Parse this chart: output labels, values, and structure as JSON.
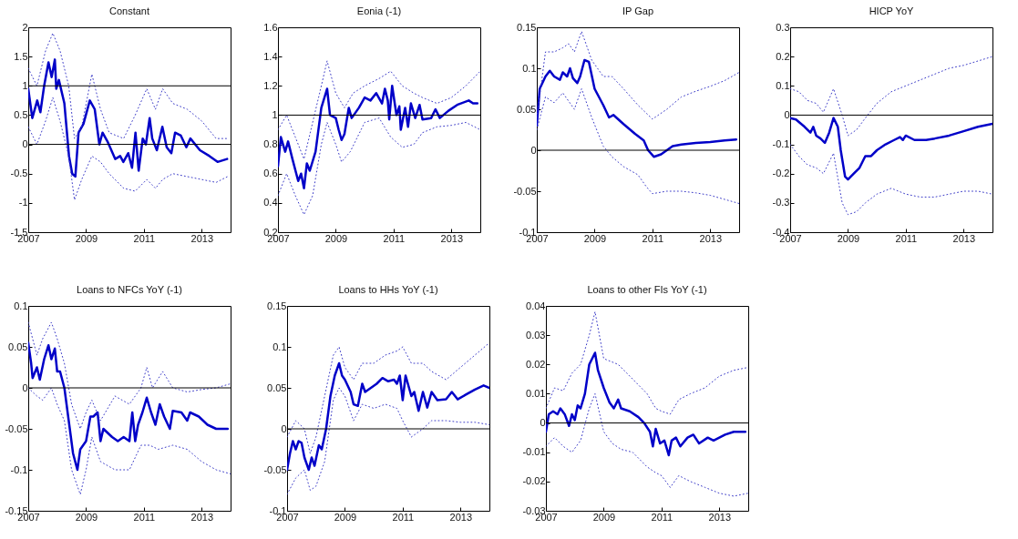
{
  "chart_data": [
    {
      "type": "line",
      "title": "Constant",
      "xlim": [
        2007,
        2014
      ],
      "xticks": [
        2007,
        2009,
        2011,
        2013
      ],
      "ylim": [
        -1.5,
        2
      ],
      "yticks": [
        -1.5,
        -1,
        -0.5,
        0,
        0.5,
        1,
        1.5,
        2
      ],
      "ref_lines": [
        {
          "axis": "y",
          "value": 1,
          "color": "#000000"
        },
        {
          "axis": "y",
          "value": 0,
          "color": "#000000"
        }
      ],
      "series": [
        {
          "color": "#0000c8",
          "line_style": "solid",
          "x": [
            2007,
            2007.14,
            2007.31,
            2007.42,
            2007.55,
            2007.7,
            2007.81,
            2007.92,
            2007.97,
            2008.06,
            2008.25,
            2008.41,
            2008.52,
            2008.63,
            2008.74,
            2008.91,
            2009.13,
            2009.3,
            2009.46,
            2009.57,
            2009.74,
            2010.01,
            2010.18,
            2010.29,
            2010.46,
            2010.59,
            2010.71,
            2010.82,
            2010.96,
            2011.07,
            2011.2,
            2011.29,
            2011.45,
            2011.64,
            2011.79,
            2011.95,
            2012.08,
            2012.28,
            2012.47,
            2012.61,
            2012.94,
            2013.27,
            2013.55,
            2013.88
          ],
          "values": [
            0.95,
            0.45,
            0.75,
            0.55,
            1.0,
            1.4,
            1.15,
            1.45,
            0.95,
            1.1,
            0.7,
            -0.2,
            -0.5,
            -0.55,
            0.2,
            0.35,
            0.75,
            0.6,
            0.0,
            0.2,
            0.05,
            -0.25,
            -0.2,
            -0.3,
            -0.15,
            -0.4,
            0.2,
            -0.45,
            0.1,
            0.0,
            0.45,
            0.1,
            -0.1,
            0.3,
            -0.05,
            -0.15,
            0.2,
            0.15,
            -0.05,
            0.1,
            -0.1,
            -0.2,
            -0.3,
            -0.25
          ]
        },
        {
          "color": "#3c3cc8",
          "line_style": "dotted",
          "x": [
            2007,
            2007.3,
            2007.6,
            2007.85,
            2008.1,
            2008.4,
            2008.6,
            2008.85,
            2009.2,
            2009.5,
            2009.8,
            2010.3,
            2010.7,
            2011.1,
            2011.4,
            2011.65,
            2012.0,
            2012.5,
            2013.0,
            2013.5,
            2013.9
          ],
          "values": [
            1.3,
            1.0,
            1.6,
            1.9,
            1.6,
            1.0,
            0.1,
            0.3,
            1.2,
            0.6,
            0.2,
            0.1,
            0.5,
            0.95,
            0.6,
            0.95,
            0.7,
            0.6,
            0.4,
            0.1,
            0.1
          ]
        },
        {
          "color": "#3c3cc8",
          "line_style": "dotted",
          "x": [
            2007,
            2007.3,
            2007.6,
            2007.85,
            2008.1,
            2008.4,
            2008.6,
            2008.85,
            2009.2,
            2009.5,
            2009.8,
            2010.3,
            2010.7,
            2011.1,
            2011.4,
            2011.65,
            2012.0,
            2012.5,
            2013.0,
            2013.5,
            2013.9
          ],
          "values": [
            0.3,
            0.0,
            0.4,
            0.8,
            0.4,
            -0.2,
            -0.95,
            -0.6,
            -0.2,
            -0.3,
            -0.5,
            -0.75,
            -0.8,
            -0.6,
            -0.75,
            -0.6,
            -0.5,
            -0.55,
            -0.6,
            -0.65,
            -0.55
          ]
        }
      ]
    },
    {
      "type": "line",
      "title": "Eonia (-1)",
      "xlim": [
        2007,
        2014
      ],
      "xticks": [
        2007,
        2009,
        2011,
        2013
      ],
      "ylim": [
        0.2,
        1.6
      ],
      "yticks": [
        0.2,
        0.4,
        0.6,
        0.8,
        1,
        1.2,
        1.4,
        1.6
      ],
      "ref_lines": [
        {
          "axis": "y",
          "value": 1,
          "color": "#000000"
        }
      ],
      "series": [
        {
          "color": "#0000c8",
          "line_style": "solid",
          "x": [
            2007,
            2007.1,
            2007.25,
            2007.35,
            2007.5,
            2007.7,
            2007.8,
            2007.9,
            2008.0,
            2008.1,
            2008.3,
            2008.5,
            2008.7,
            2008.8,
            2009.0,
            2009.1,
            2009.2,
            2009.3,
            2009.45,
            2009.55,
            2009.8,
            2010.0,
            2010.2,
            2010.4,
            2010.6,
            2010.7,
            2010.8,
            2010.85,
            2010.95,
            2011.1,
            2011.2,
            2011.25,
            2011.4,
            2011.5,
            2011.6,
            2011.75,
            2011.9,
            2012.0,
            2012.3,
            2012.45,
            2012.6,
            2012.9,
            2013.2,
            2013.6,
            2013.75,
            2013.9
          ],
          "values": [
            0.65,
            0.85,
            0.75,
            0.82,
            0.7,
            0.55,
            0.6,
            0.5,
            0.67,
            0.62,
            0.75,
            1.05,
            1.18,
            1.0,
            0.98,
            0.9,
            0.83,
            0.87,
            1.05,
            0.98,
            1.05,
            1.12,
            1.1,
            1.15,
            1.08,
            1.18,
            1.1,
            0.97,
            1.2,
            1.0,
            1.06,
            0.9,
            1.05,
            0.92,
            1.08,
            0.98,
            1.07,
            0.97,
            0.98,
            1.04,
            0.98,
            1.03,
            1.07,
            1.1,
            1.08,
            1.08
          ]
        },
        {
          "color": "#3c3cc8",
          "line_style": "dotted",
          "x": [
            2007,
            2007.3,
            2007.6,
            2007.9,
            2008.2,
            2008.5,
            2008.7,
            2009.0,
            2009.3,
            2009.6,
            2010.0,
            2010.5,
            2010.9,
            2011.3,
            2011.7,
            2012.0,
            2012.5,
            2013.0,
            2013.5,
            2014
          ],
          "values": [
            0.9,
            1.0,
            0.85,
            0.7,
            0.95,
            1.2,
            1.37,
            1.15,
            1.05,
            1.15,
            1.2,
            1.25,
            1.3,
            1.2,
            1.15,
            1.12,
            1.08,
            1.12,
            1.2,
            1.3
          ]
        },
        {
          "color": "#3c3cc8",
          "line_style": "dotted",
          "x": [
            2007,
            2007.3,
            2007.6,
            2007.9,
            2008.2,
            2008.5,
            2008.7,
            2009.0,
            2009.2,
            2009.5,
            2010.0,
            2010.5,
            2010.9,
            2011.3,
            2011.7,
            2012.0,
            2012.5,
            2013.0,
            2013.5,
            2014
          ],
          "values": [
            0.45,
            0.6,
            0.45,
            0.32,
            0.45,
            0.8,
            0.95,
            0.8,
            0.68,
            0.75,
            0.95,
            0.98,
            0.85,
            0.78,
            0.8,
            0.88,
            0.92,
            0.93,
            0.95,
            0.9
          ]
        }
      ]
    },
    {
      "type": "line",
      "title": "IP Gap",
      "xlim": [
        2007,
        2014
      ],
      "xticks": [
        2007,
        2009,
        2011,
        2013
      ],
      "ylim": [
        -0.1,
        0.15
      ],
      "yticks": [
        -0.1,
        -0.05,
        0,
        0.05,
        0.1,
        0.15
      ],
      "ref_lines": [
        {
          "axis": "y",
          "value": 0,
          "color": "#000000"
        }
      ],
      "series": [
        {
          "color": "#0000c8",
          "line_style": "solid",
          "x": [
            2007,
            2007.1,
            2007.3,
            2007.45,
            2007.6,
            2007.8,
            2007.9,
            2008.05,
            2008.15,
            2008.25,
            2008.4,
            2008.5,
            2008.65,
            2008.8,
            2009.0,
            2009.3,
            2009.5,
            2009.65,
            2010.0,
            2010.4,
            2010.7,
            2010.85,
            2011.05,
            2011.3,
            2011.5,
            2011.7,
            2012.0,
            2012.5,
            2013.0,
            2013.5,
            2013.9
          ],
          "values": [
            0.03,
            0.075,
            0.09,
            0.097,
            0.09,
            0.086,
            0.095,
            0.09,
            0.1,
            0.088,
            0.082,
            0.09,
            0.11,
            0.108,
            0.075,
            0.055,
            0.04,
            0.043,
            0.032,
            0.02,
            0.012,
            0.0,
            -0.008,
            -0.005,
            0.0,
            0.005,
            0.007,
            0.009,
            0.01,
            0.012,
            0.013
          ]
        },
        {
          "color": "#3c3cc8",
          "line_style": "dotted",
          "x": [
            2007,
            2007.3,
            2007.6,
            2007.9,
            2008.1,
            2008.3,
            2008.55,
            2008.9,
            2009.3,
            2009.6,
            2010.0,
            2010.5,
            2011.0,
            2011.5,
            2012.0,
            2012.5,
            2013.0,
            2013.5,
            2014
          ],
          "values": [
            0.04,
            0.12,
            0.12,
            0.125,
            0.13,
            0.12,
            0.145,
            0.11,
            0.09,
            0.09,
            0.075,
            0.055,
            0.038,
            0.05,
            0.065,
            0.072,
            0.078,
            0.085,
            0.095
          ]
        },
        {
          "color": "#3c3cc8",
          "line_style": "dotted",
          "x": [
            2007,
            2007.3,
            2007.6,
            2007.9,
            2008.1,
            2008.3,
            2008.55,
            2008.9,
            2009.3,
            2009.6,
            2010.0,
            2010.5,
            2010.8,
            2011.0,
            2011.5,
            2012.0,
            2012.5,
            2013.0,
            2013.5,
            2014
          ],
          "values": [
            0.025,
            0.065,
            0.058,
            0.07,
            0.06,
            0.05,
            0.075,
            0.04,
            0.005,
            -0.008,
            -0.02,
            -0.03,
            -0.045,
            -0.053,
            -0.05,
            -0.05,
            -0.052,
            -0.055,
            -0.06,
            -0.065
          ]
        }
      ]
    },
    {
      "type": "line",
      "title": "HICP YoY",
      "xlim": [
        2007,
        2014
      ],
      "xticks": [
        2007,
        2009,
        2011,
        2013
      ],
      "ylim": [
        -0.4,
        0.3
      ],
      "yticks": [
        -0.4,
        -0.3,
        -0.2,
        -0.1,
        0,
        0.1,
        0.2,
        0.3
      ],
      "ref_lines": [
        {
          "axis": "y",
          "value": 0,
          "color": "#000000"
        }
      ],
      "series": [
        {
          "color": "#0000c8",
          "line_style": "solid",
          "x": [
            2007,
            2007.2,
            2007.5,
            2007.7,
            2007.8,
            2007.9,
            2008.05,
            2008.2,
            2008.35,
            2008.5,
            2008.65,
            2008.75,
            2008.9,
            2009.0,
            2009.2,
            2009.4,
            2009.6,
            2009.8,
            2010.0,
            2010.3,
            2010.6,
            2010.8,
            2010.9,
            2011.0,
            2011.3,
            2011.7,
            2012.0,
            2012.5,
            2013.0,
            2013.5,
            2014
          ],
          "values": [
            -0.01,
            -0.015,
            -0.04,
            -0.06,
            -0.04,
            -0.07,
            -0.08,
            -0.095,
            -0.06,
            -0.01,
            -0.04,
            -0.12,
            -0.21,
            -0.22,
            -0.2,
            -0.18,
            -0.14,
            -0.14,
            -0.12,
            -0.1,
            -0.085,
            -0.075,
            -0.085,
            -0.07,
            -0.085,
            -0.085,
            -0.08,
            -0.07,
            -0.055,
            -0.04,
            -0.03
          ]
        },
        {
          "color": "#3c3cc8",
          "line_style": "dotted",
          "x": [
            2007,
            2007.3,
            2007.6,
            2007.9,
            2008.15,
            2008.5,
            2008.8,
            2009.0,
            2009.3,
            2009.6,
            2010.0,
            2010.5,
            2011.0,
            2011.5,
            2012.0,
            2012.5,
            2013.0,
            2013.5,
            2014
          ],
          "values": [
            0.09,
            0.08,
            0.05,
            0.04,
            0.01,
            0.09,
            0.0,
            -0.07,
            -0.05,
            -0.01,
            0.04,
            0.08,
            0.1,
            0.12,
            0.14,
            0.16,
            0.17,
            0.185,
            0.2
          ]
        },
        {
          "color": "#3c3cc8",
          "line_style": "dotted",
          "x": [
            2007,
            2007.3,
            2007.6,
            2007.9,
            2008.15,
            2008.5,
            2008.8,
            2009.0,
            2009.3,
            2009.6,
            2010.0,
            2010.5,
            2011.0,
            2011.5,
            2012.0,
            2012.5,
            2013.0,
            2013.5,
            2014
          ],
          "values": [
            -0.1,
            -0.14,
            -0.17,
            -0.18,
            -0.2,
            -0.13,
            -0.3,
            -0.34,
            -0.33,
            -0.3,
            -0.27,
            -0.25,
            -0.27,
            -0.28,
            -0.28,
            -0.27,
            -0.26,
            -0.26,
            -0.27
          ]
        }
      ]
    },
    {
      "type": "line",
      "title": "Loans to NFCs YoY (-1)",
      "xlim": [
        2007,
        2014
      ],
      "xticks": [
        2007,
        2009,
        2011,
        2013
      ],
      "ylim": [
        -0.15,
        0.1
      ],
      "yticks": [
        -0.15,
        -0.1,
        -0.05,
        0,
        0.05,
        0.1
      ],
      "ref_lines": [
        {
          "axis": "y",
          "value": 0,
          "color": "#000000"
        }
      ],
      "series": [
        {
          "color": "#0000c8",
          "line_style": "solid",
          "x": [
            2007,
            2007.1,
            2007.15,
            2007.3,
            2007.4,
            2007.55,
            2007.7,
            2007.8,
            2007.92,
            2008.0,
            2008.1,
            2008.25,
            2008.4,
            2008.55,
            2008.7,
            2008.8,
            2009.0,
            2009.15,
            2009.25,
            2009.4,
            2009.5,
            2009.6,
            2009.9,
            2010.1,
            2010.3,
            2010.5,
            2010.6,
            2010.7,
            2010.8,
            2010.95,
            2011.1,
            2011.25,
            2011.4,
            2011.55,
            2011.7,
            2011.9,
            2012.0,
            2012.3,
            2012.5,
            2012.6,
            2012.9,
            2013.2,
            2013.5,
            2013.9
          ],
          "values": [
            0.055,
            0.03,
            0.012,
            0.025,
            0.01,
            0.035,
            0.052,
            0.035,
            0.048,
            0.02,
            0.02,
            0.0,
            -0.04,
            -0.08,
            -0.1,
            -0.075,
            -0.065,
            -0.035,
            -0.035,
            -0.03,
            -0.065,
            -0.05,
            -0.06,
            -0.065,
            -0.06,
            -0.065,
            -0.03,
            -0.065,
            -0.045,
            -0.03,
            -0.012,
            -0.03,
            -0.045,
            -0.02,
            -0.035,
            -0.05,
            -0.028,
            -0.03,
            -0.04,
            -0.03,
            -0.035,
            -0.045,
            -0.05,
            -0.05
          ]
        },
        {
          "color": "#3c3cc8",
          "line_style": "dotted",
          "x": [
            2007,
            2007.3,
            2007.5,
            2007.8,
            2008.0,
            2008.25,
            2008.5,
            2008.8,
            2009.0,
            2009.2,
            2009.5,
            2010.0,
            2010.5,
            2010.9,
            2011.1,
            2011.3,
            2011.65,
            2012.0,
            2012.5,
            2013.0,
            2013.5,
            2014
          ],
          "values": [
            0.08,
            0.04,
            0.06,
            0.08,
            0.06,
            0.03,
            -0.02,
            -0.05,
            -0.03,
            -0.015,
            -0.04,
            -0.01,
            -0.02,
            0.0,
            0.025,
            0.0,
            0.02,
            0.0,
            -0.005,
            -0.002,
            0.0,
            0.005
          ]
        },
        {
          "color": "#3c3cc8",
          "line_style": "dotted",
          "x": [
            2007,
            2007.3,
            2007.5,
            2007.8,
            2008.0,
            2008.25,
            2008.5,
            2008.8,
            2009.0,
            2009.2,
            2009.5,
            2010.0,
            2010.5,
            2010.9,
            2011.2,
            2011.5,
            2012.0,
            2012.5,
            2013.0,
            2013.5,
            2014
          ],
          "values": [
            0.0,
            -0.01,
            -0.015,
            0.0,
            -0.02,
            -0.04,
            -0.1,
            -0.13,
            -0.1,
            -0.06,
            -0.09,
            -0.1,
            -0.1,
            -0.07,
            -0.07,
            -0.075,
            -0.07,
            -0.075,
            -0.09,
            -0.1,
            -0.105
          ]
        }
      ]
    },
    {
      "type": "line",
      "title": "Loans to HHs YoY (-1)",
      "xlim": [
        2007,
        2014
      ],
      "xticks": [
        2007,
        2009,
        2011,
        2013
      ],
      "ylim": [
        -0.1,
        0.15
      ],
      "yticks": [
        -0.1,
        -0.05,
        0,
        0.05,
        0.1,
        0.15
      ],
      "ref_lines": [
        {
          "axis": "y",
          "value": 0,
          "color": "#000000"
        }
      ],
      "series": [
        {
          "color": "#0000c8",
          "line_style": "solid",
          "x": [
            2007,
            2007.1,
            2007.2,
            2007.3,
            2007.4,
            2007.5,
            2007.6,
            2007.75,
            2007.85,
            2007.95,
            2008.1,
            2008.2,
            2008.35,
            2008.5,
            2008.65,
            2008.8,
            2008.9,
            2009.0,
            2009.2,
            2009.3,
            2009.45,
            2009.6,
            2009.7,
            2009.9,
            2010.1,
            2010.3,
            2010.5,
            2010.7,
            2010.8,
            2010.9,
            2011.0,
            2011.1,
            2011.3,
            2011.4,
            2011.55,
            2011.7,
            2011.85,
            2012.0,
            2012.2,
            2012.5,
            2012.7,
            2012.9,
            2013.2,
            2013.5,
            2013.8,
            2014
          ],
          "values": [
            -0.05,
            -0.03,
            -0.015,
            -0.025,
            -0.015,
            -0.017,
            -0.035,
            -0.05,
            -0.035,
            -0.045,
            -0.02,
            -0.025,
            0.0,
            0.04,
            0.065,
            0.08,
            0.065,
            0.06,
            0.045,
            0.03,
            0.028,
            0.055,
            0.045,
            0.05,
            0.055,
            0.062,
            0.058,
            0.06,
            0.055,
            0.065,
            0.035,
            0.065,
            0.04,
            0.045,
            0.022,
            0.045,
            0.026,
            0.045,
            0.035,
            0.036,
            0.045,
            0.036,
            0.042,
            0.048,
            0.053,
            0.05
          ]
        },
        {
          "color": "#3c3cc8",
          "line_style": "dotted",
          "x": [
            2007,
            2007.3,
            2007.6,
            2007.8,
            2008.0,
            2008.3,
            2008.6,
            2008.8,
            2009.0,
            2009.3,
            2009.6,
            2010.0,
            2010.4,
            2010.8,
            2011.0,
            2011.3,
            2011.7,
            2012.0,
            2012.5,
            2013.0,
            2013.5,
            2014
          ],
          "values": [
            -0.01,
            0.01,
            0.0,
            -0.03,
            -0.01,
            0.04,
            0.09,
            0.1,
            0.075,
            0.06,
            0.08,
            0.08,
            0.09,
            0.095,
            0.1,
            0.08,
            0.08,
            0.07,
            0.06,
            0.075,
            0.09,
            0.105
          ]
        },
        {
          "color": "#3c3cc8",
          "line_style": "dotted",
          "x": [
            2007,
            2007.3,
            2007.6,
            2007.8,
            2008.0,
            2008.3,
            2008.6,
            2008.8,
            2009.0,
            2009.3,
            2009.6,
            2010.0,
            2010.4,
            2010.8,
            2011.0,
            2011.3,
            2011.7,
            2012.0,
            2012.5,
            2013.0,
            2013.5,
            2014
          ],
          "values": [
            -0.08,
            -0.06,
            -0.05,
            -0.075,
            -0.07,
            -0.04,
            0.035,
            0.05,
            0.04,
            0.01,
            0.03,
            0.025,
            0.03,
            0.025,
            0.01,
            -0.01,
            0.0,
            0.01,
            0.01,
            0.008,
            0.008,
            0.005
          ]
        }
      ]
    },
    {
      "type": "line",
      "title": "Loans to other FIs YoY (-1)",
      "xlim": [
        2007,
        2014
      ],
      "xticks": [
        2007,
        2009,
        2011,
        2013
      ],
      "ylim": [
        -0.03,
        0.04
      ],
      "yticks": [
        -0.03,
        -0.02,
        -0.01,
        0,
        0.01,
        0.02,
        0.03,
        0.04
      ],
      "ref_lines": [
        {
          "axis": "y",
          "value": 0,
          "color": "#000000"
        }
      ],
      "series": [
        {
          "color": "#0000c8",
          "line_style": "solid",
          "x": [
            2007,
            2007.1,
            2007.25,
            2007.4,
            2007.5,
            2007.65,
            2007.8,
            2007.9,
            2008.0,
            2008.1,
            2008.2,
            2008.35,
            2008.5,
            2008.7,
            2008.8,
            2009.0,
            2009.2,
            2009.35,
            2009.5,
            2009.6,
            2009.9,
            2010.2,
            2010.4,
            2010.6,
            2010.7,
            2010.8,
            2010.95,
            2011.1,
            2011.25,
            2011.35,
            2011.5,
            2011.65,
            2011.9,
            2012.1,
            2012.3,
            2012.6,
            2012.8,
            2013.2,
            2013.5,
            2013.9
          ],
          "values": [
            -0.003,
            0.003,
            0.004,
            0.003,
            0.005,
            0.003,
            -0.001,
            0.003,
            0.001,
            0.006,
            0.005,
            0.01,
            0.02,
            0.024,
            0.018,
            0.012,
            0.007,
            0.005,
            0.008,
            0.005,
            0.004,
            0.002,
            0.0,
            -0.003,
            -0.008,
            -0.002,
            -0.007,
            -0.006,
            -0.011,
            -0.006,
            -0.005,
            -0.008,
            -0.005,
            -0.004,
            -0.007,
            -0.005,
            -0.006,
            -0.004,
            -0.003,
            -0.003
          ]
        },
        {
          "color": "#3c3cc8",
          "line_style": "dotted",
          "x": [
            2007,
            2007.3,
            2007.6,
            2007.9,
            2008.2,
            2008.5,
            2008.7,
            2009.0,
            2009.5,
            2010.0,
            2010.5,
            2010.8,
            2011.0,
            2011.3,
            2011.6,
            2012.0,
            2012.5,
            2013.0,
            2013.5,
            2014
          ],
          "values": [
            0.005,
            0.012,
            0.011,
            0.017,
            0.02,
            0.03,
            0.038,
            0.022,
            0.02,
            0.015,
            0.01,
            0.005,
            0.004,
            0.003,
            0.008,
            0.01,
            0.012,
            0.016,
            0.018,
            0.019
          ]
        },
        {
          "color": "#3c3cc8",
          "line_style": "dotted",
          "x": [
            2007,
            2007.3,
            2007.6,
            2007.9,
            2008.2,
            2008.5,
            2008.7,
            2009.0,
            2009.3,
            2009.6,
            2010.0,
            2010.5,
            2010.8,
            2011.0,
            2011.3,
            2011.6,
            2012.0,
            2012.5,
            2013.0,
            2013.5,
            2014
          ],
          "values": [
            -0.008,
            -0.005,
            -0.008,
            -0.01,
            -0.006,
            0.005,
            0.01,
            -0.003,
            -0.007,
            -0.009,
            -0.01,
            -0.015,
            -0.017,
            -0.018,
            -0.022,
            -0.018,
            -0.02,
            -0.022,
            -0.024,
            -0.025,
            -0.024
          ]
        }
      ]
    }
  ]
}
